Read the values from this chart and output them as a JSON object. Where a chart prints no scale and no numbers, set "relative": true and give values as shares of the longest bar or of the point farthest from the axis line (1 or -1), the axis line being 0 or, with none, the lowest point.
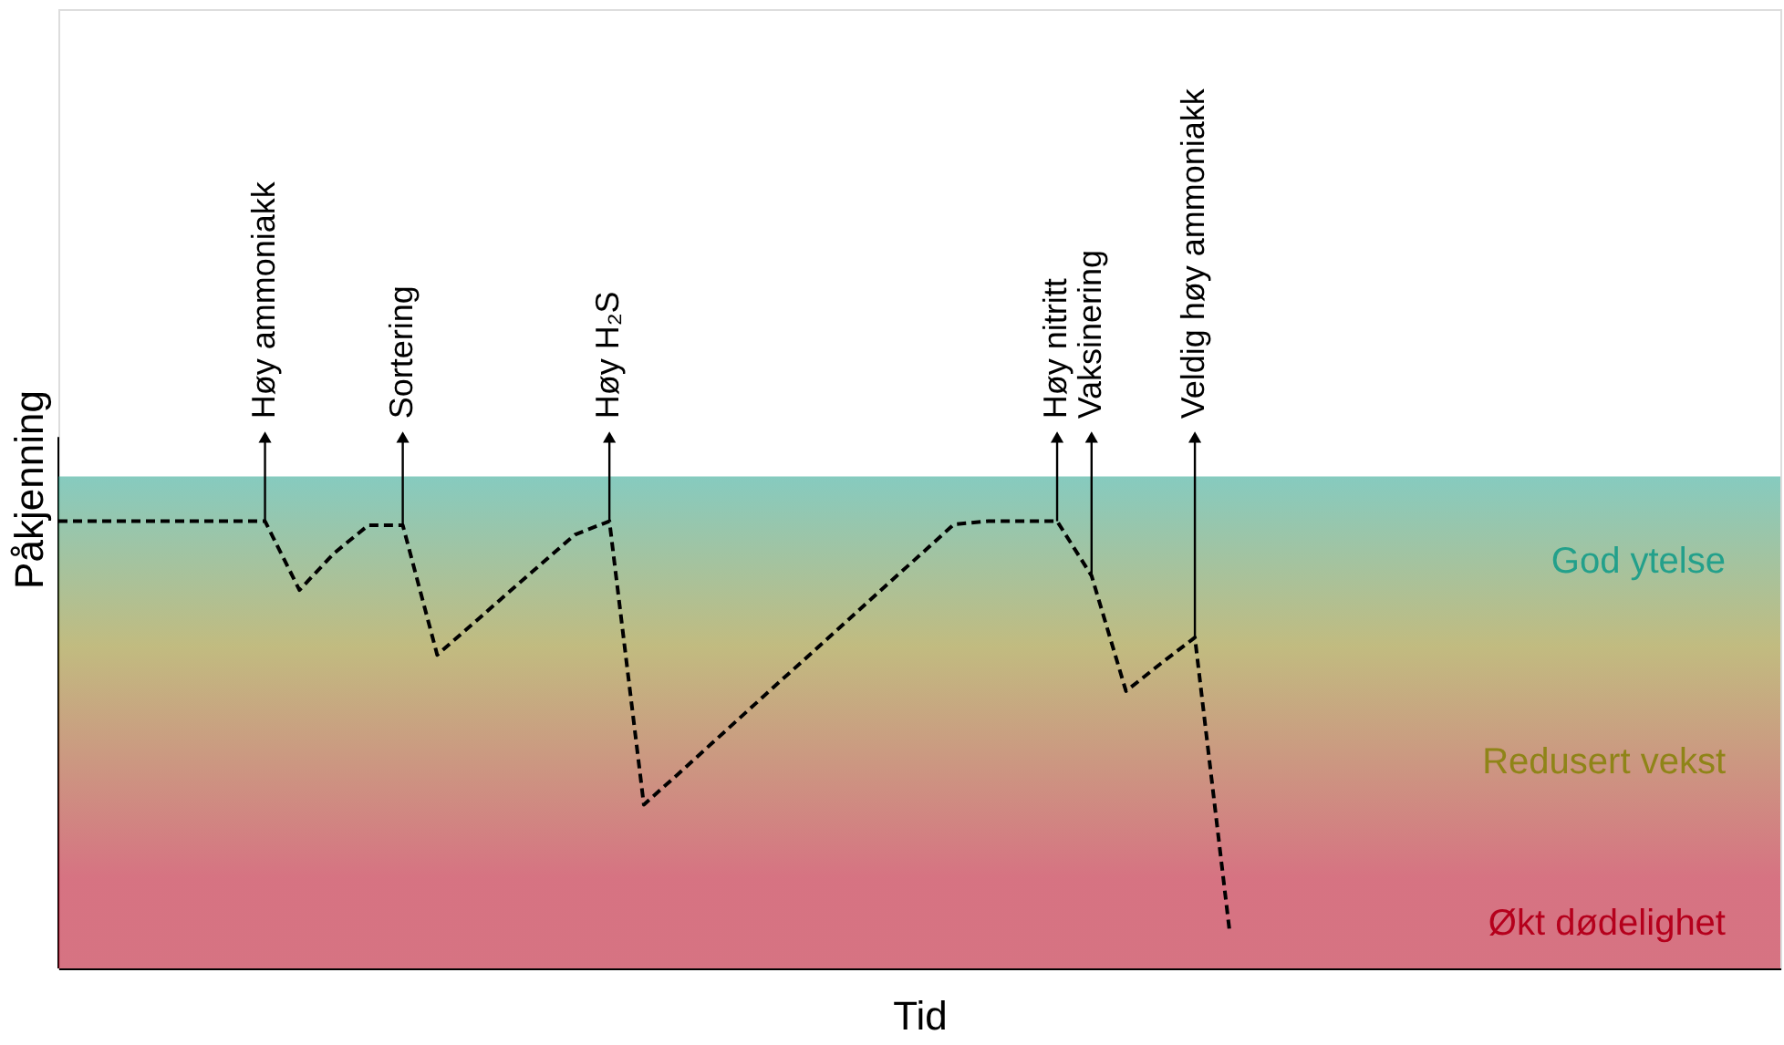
{
  "chart_data": {
    "type": "line",
    "relative": true,
    "xlabel": "Tid",
    "ylabel": "Påkjenning",
    "categories": [
      null,
      null,
      null,
      null,
      null,
      null,
      null,
      null,
      null,
      null,
      null,
      null,
      null,
      null,
      null,
      null,
      null,
      null,
      null,
      null,
      null,
      null,
      null,
      null,
      null,
      null,
      null,
      null,
      null,
      null,
      null,
      null,
      null,
      null,
      null,
      null,
      null,
      null,
      null,
      null,
      null,
      null,
      null,
      null,
      null,
      null,
      null,
      null,
      null,
      null,
      null
    ],
    "series": [
      {
        "color": "#000000",
        "values": [
          1,
          1,
          1,
          1,
          1,
          1,
          1,
          0.846,
          0.928,
          0.991,
          0.991,
          0.701,
          0.768,
          0.836,
          0.903,
          0.97,
          1,
          0.366,
          0.435,
          0.505,
          0.575,
          0.645,
          0.714,
          0.784,
          0.854,
          0.923,
          0.993,
          1,
          1,
          1,
          0.878,
          0.62,
          0.681,
          0.74,
          0.088,
          null,
          null,
          null,
          null,
          null,
          null,
          null,
          null,
          null,
          null,
          null,
          null,
          null,
          null,
          null,
          null
        ]
      }
    ],
    "line_style": "dashed",
    "marker": "none",
    "bands": [
      {
        "axis": "y",
        "from": 0.72,
        "to": 1.1,
        "label": "God ytelse",
        "color": "#23a08b"
      },
      {
        "axis": "y",
        "from": 0.2,
        "to": 0.72,
        "label": "Redusert vekst",
        "color": "#8f8418"
      },
      {
        "axis": "y",
        "from": 0,
        "to": 0.2,
        "label": "Økt dødelighet",
        "color": "#b5001c"
      }
    ],
    "annotations": [
      "Høy ammoniakk",
      "Sortering",
      "Høy H₂S",
      "Høy nitritt",
      "Vaksinering",
      "Veldig høy ammoniakk"
    ]
  }
}
